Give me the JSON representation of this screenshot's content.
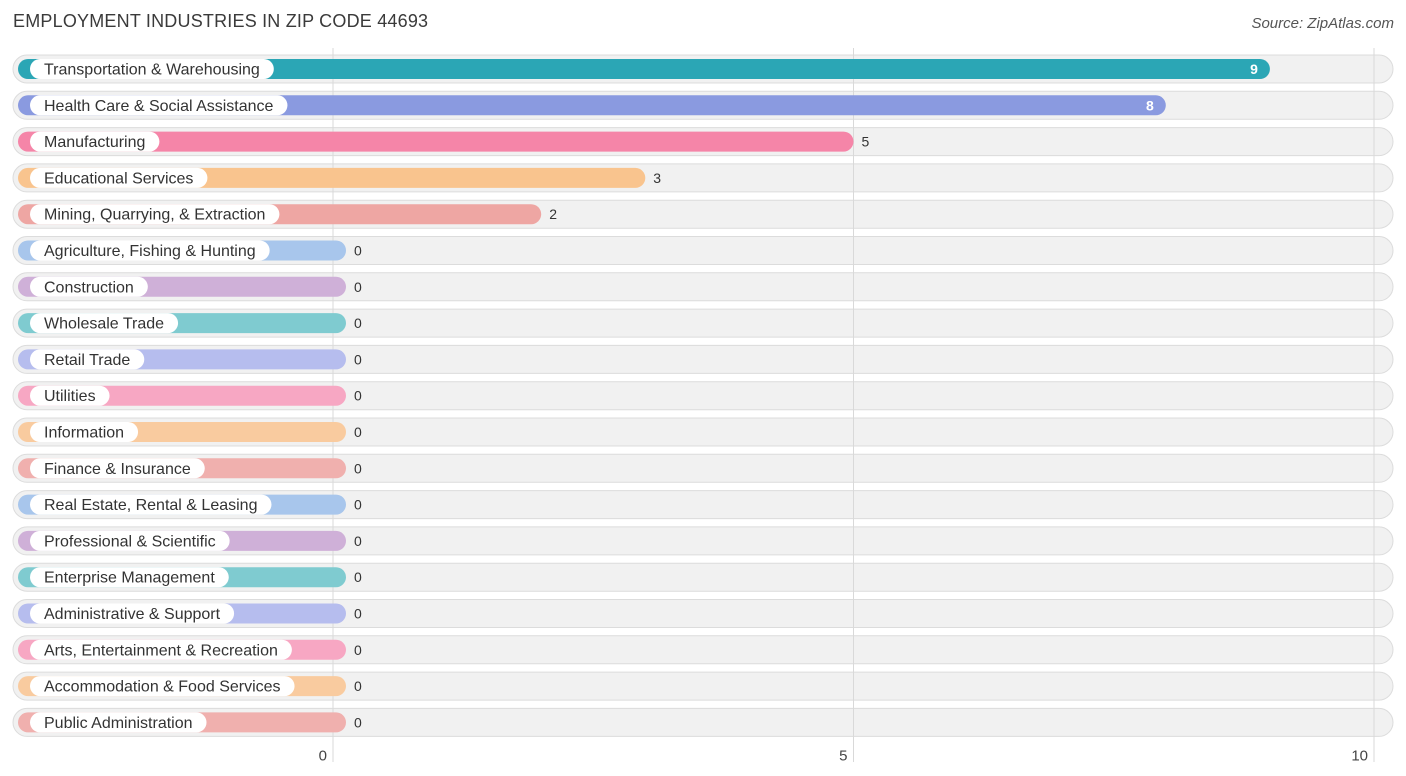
{
  "chart_data": {
    "type": "bar",
    "orientation": "horizontal",
    "title": "EMPLOYMENT INDUSTRIES IN ZIP CODE 44693",
    "source": "Source: ZipAtlas.com",
    "xlim": [
      0,
      10
    ],
    "x_ticks": [
      "0",
      "5",
      "10"
    ],
    "grid": true,
    "categories": [
      "Transportation & Warehousing",
      "Health Care & Social Assistance",
      "Manufacturing",
      "Educational Services",
      "Mining, Quarrying, & Extraction",
      "Agriculture, Fishing & Hunting",
      "Construction",
      "Wholesale Trade",
      "Retail Trade",
      "Utilities",
      "Information",
      "Finance & Insurance",
      "Real Estate, Rental & Leasing",
      "Professional & Scientific",
      "Enterprise Management",
      "Administrative & Support",
      "Arts, Entertainment & Recreation",
      "Accommodation & Food Services",
      "Public Administration"
    ],
    "values": [
      9,
      8,
      5,
      3,
      2,
      0,
      0,
      0,
      0,
      0,
      0,
      0,
      0,
      0,
      0,
      0,
      0,
      0,
      0
    ],
    "colors": [
      "#2ba6b5",
      "#8a9ae0",
      "#f585a8",
      "#f9c48e",
      "#eea6a3",
      "#a8c6ec",
      "#cfb0d8",
      "#7fcbd0",
      "#b6bdee",
      "#f7a7c3",
      "#f9cb9f",
      "#f0b0ae",
      "#a8c6ec",
      "#cfb0d8",
      "#7fcbd0",
      "#b6bdee",
      "#f7a7c3",
      "#f9cb9f",
      "#f0b0ae"
    ]
  }
}
